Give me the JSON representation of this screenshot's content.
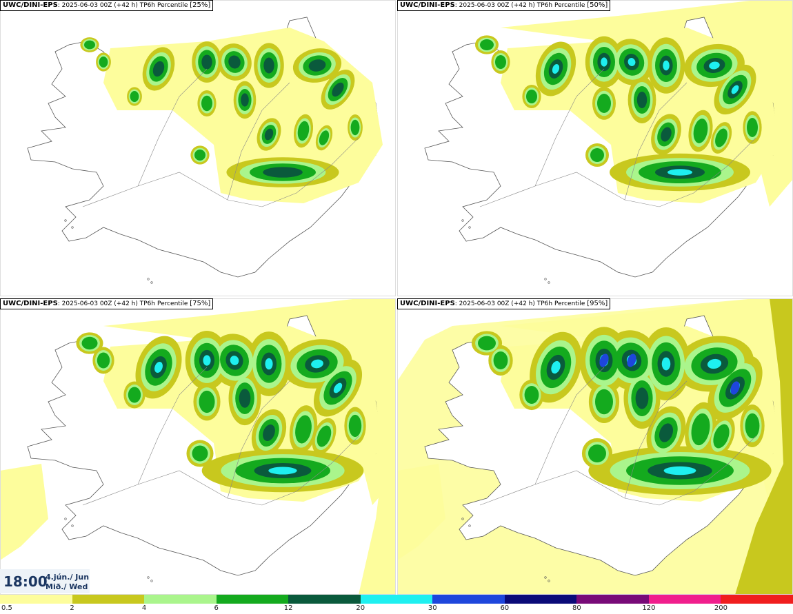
{
  "panels": [
    {
      "source": "UWC/DINI-EPS",
      "run": ": 2025-06-03 00Z (+42 h) TP6h Percentile",
      "percentile": "[25%]"
    },
    {
      "source": "UWC/DINI-EPS",
      "run": ": 2025-06-03 00Z (+42 h) TP6h Percentile",
      "percentile": "[50%]"
    },
    {
      "source": "UWC/DINI-EPS",
      "run": ": 2025-06-03 00Z (+42 h) TP6h Percentile",
      "percentile": "[75%]"
    },
    {
      "source": "UWC/DINI-EPS",
      "run": ": 2025-06-03 00Z (+42 h) TP6h Percentile",
      "percentile": "[95%]"
    }
  ],
  "valid_time": {
    "time": "18:00",
    "date": "4.jún./ Jun",
    "weekday": "Mið./ Wed"
  },
  "legend": {
    "labels": [
      "0.5",
      "2",
      "4",
      "6",
      "12",
      "20",
      "30",
      "60",
      "80",
      "120",
      "200"
    ],
    "colors": [
      "#fdfd9c",
      "#c8c81e",
      "#aaf58c",
      "#14aa1e",
      "#0a5a3c",
      "#1ef0f0",
      "#1e46dc",
      "#0a0a78",
      "#780a78",
      "#f01e8c",
      "#f01e1e"
    ]
  },
  "colors": {
    "dry": "#c8c81e",
    "light": "#fdfd9c",
    "green_light": "#aaf58c",
    "green": "#14aa1e",
    "green_dark": "#0a5a3c",
    "cyan": "#1ef0f0",
    "blue": "#1e46dc",
    "coast": "#555555"
  }
}
